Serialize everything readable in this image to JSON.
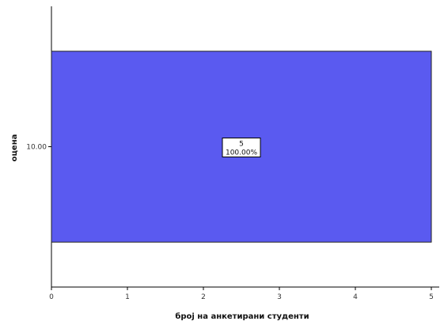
{
  "chart_data": {
    "type": "bar",
    "orientation": "horizontal",
    "categories": [
      "10.00"
    ],
    "values": [
      5
    ],
    "percents": [
      "100.00%"
    ],
    "data_labels": [
      {
        "count": "5",
        "percent": "100.00%"
      }
    ],
    "xlabel": "број на анкетирани студенти",
    "ylabel": "оцена",
    "xlim": [
      0,
      5
    ],
    "xticks": [
      "0",
      "1",
      "2",
      "3",
      "4",
      "5"
    ],
    "grid": false,
    "legend": "none",
    "colors": {
      "bar": "#5a5af0",
      "bar_stroke": "#222222",
      "axis": "#000000"
    }
  }
}
